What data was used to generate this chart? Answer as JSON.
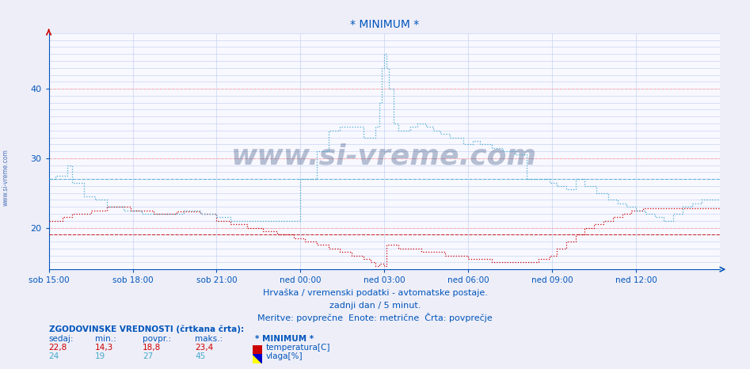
{
  "title": "* MINIMUM *",
  "bg_color": "#eeeef8",
  "plot_bg": "#f8f8ff",
  "grid_color_major": "#ffaaaa",
  "grid_color_minor": "#bbccee",
  "xlabel_texts": [
    "sob 15:00",
    "sob 18:00",
    "sob 21:00",
    "ned 00:00",
    "ned 03:00",
    "ned 06:00",
    "ned 09:00",
    "ned 12:00"
  ],
  "ylabel_ticks": [
    20,
    30,
    40
  ],
  "ylim": [
    14,
    48
  ],
  "xlim": [
    0,
    288
  ],
  "footer_line1": "Hrvaška / vremenski podatki - avtomatske postaje.",
  "footer_line2": "zadnji dan / 5 minut.",
  "footer_line3": "Meritve: povprečne  Enote: metrične  Črta: povprečje",
  "legend_title": "ZGODOVINSKE VREDNOSTI (črtkana črta):",
  "legend_headers": [
    "sedaj:",
    "min.:",
    "povpr.:",
    "maks.:",
    "* MINIMUM *"
  ],
  "legend_row1": [
    "22,8",
    "14,3",
    "18,8",
    "23,4",
    "temperatura[C]"
  ],
  "legend_row2": [
    "24",
    "19",
    "27",
    "45",
    "vlaga[%]"
  ],
  "temp_color": "#cc0000",
  "hum_color": "#44aacc",
  "temp_hist_val": 19.0,
  "hum_hist_val": 27.0,
  "watermark": "www.si-vreme.com",
  "watermark_color": "#1a3a6a",
  "watermark_alpha": 0.3,
  "side_text": "www.si-vreme.com",
  "side_text_color": "#2255aa",
  "arrow_color_x": "#0055bb",
  "arrow_color_y": "#cc0000"
}
